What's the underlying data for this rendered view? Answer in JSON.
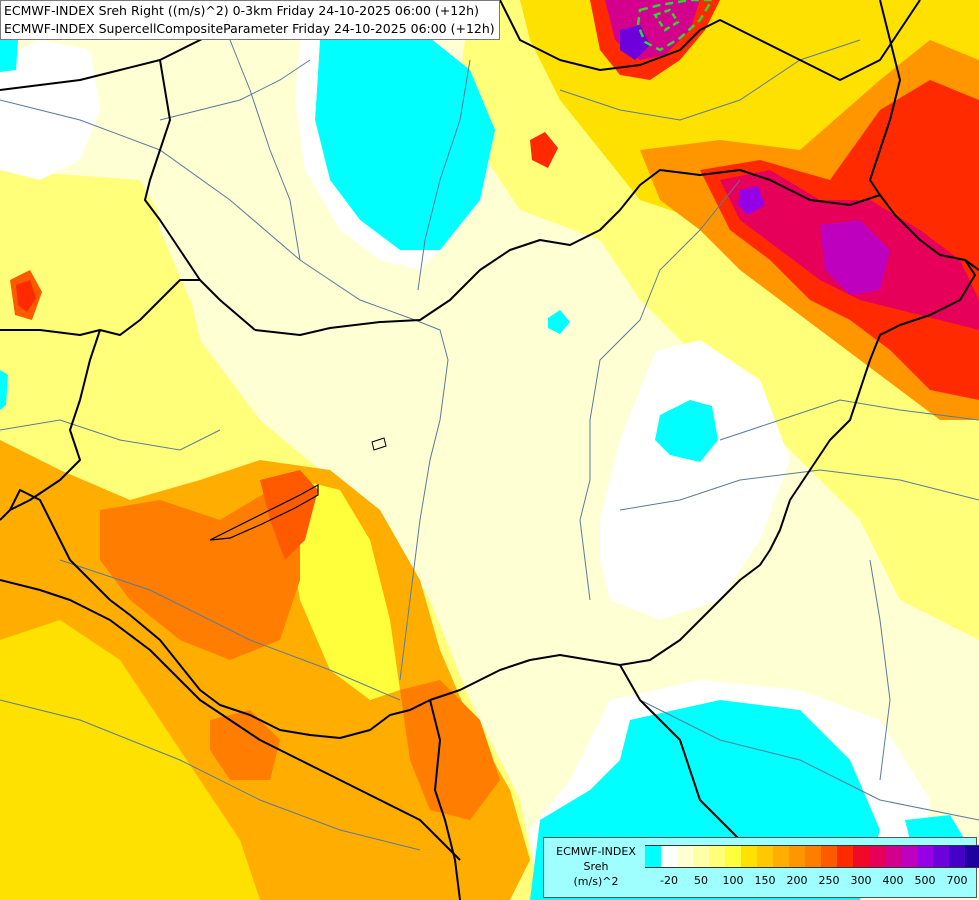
{
  "title": {
    "line1": "ECMWF-INDEX Sreh Right ((m/s)^2) 0-3km Friday 24-10-2025 06:00 (+12h)",
    "line2": "ECMWF-INDEX SupercellCompositeParameter Friday 24-10-2025 06:00 (+12h)"
  },
  "legend": {
    "source": "ECMWF-INDEX",
    "variable": "Sreh",
    "unit": "(m/s)^2",
    "colors": [
      "#00ffff",
      "#ffffff",
      "#ffffd4",
      "#ffffa8",
      "#ffff7a",
      "#ffff3c",
      "#ffe100",
      "#ffc800",
      "#ffae00",
      "#ff9600",
      "#ff7d00",
      "#ff5a00",
      "#ff2a00",
      "#f00a28",
      "#e6005a",
      "#d2008c",
      "#be00be",
      "#9600e6",
      "#6e00dc",
      "#4600c8",
      "#1e00a0"
    ],
    "tick_labels": [
      "-20",
      "50",
      "100",
      "150",
      "200",
      "250",
      "300",
      "400",
      "500",
      "700"
    ]
  },
  "colors": {
    "border": "#000000",
    "river": "#5a7a9a",
    "scp_contour": "#2fd62f",
    "cyan": "#00ffff"
  }
}
